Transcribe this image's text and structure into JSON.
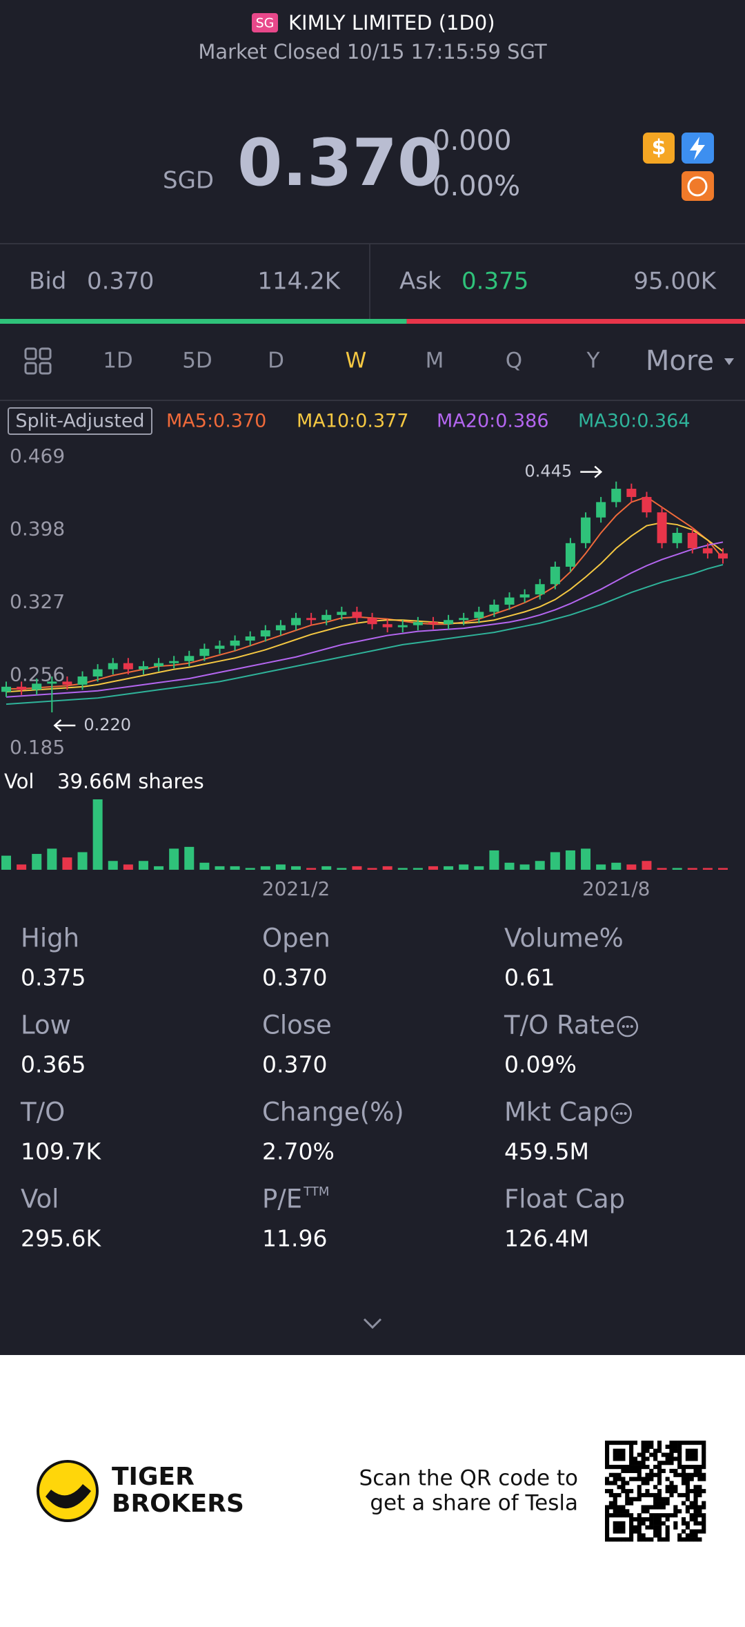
{
  "header": {
    "badge": "SG",
    "title": "KIMLY LIMITED (1D0)",
    "status": "Market Closed 10/15 17:15:59 SGT"
  },
  "quote": {
    "currency": "SGD",
    "price": "0.370",
    "change": "0.000",
    "change_pct": "0.00%"
  },
  "order_book": {
    "bid": {
      "label": "Bid",
      "price": "0.370",
      "size": {
        "value": 114200,
        "label": "114.2K"
      },
      "color": "#2fc27a"
    },
    "ask": {
      "label": "Ask",
      "price": "0.375",
      "size": {
        "value": 95000,
        "label": "95.00K"
      },
      "color": "#e8354a"
    }
  },
  "tabs": [
    {
      "label": "1D"
    },
    {
      "label": "5D"
    },
    {
      "label": "D"
    },
    {
      "label": "W",
      "active": true
    },
    {
      "label": "M"
    },
    {
      "label": "Q"
    },
    {
      "label": "Y"
    },
    {
      "label": "More",
      "menu": true
    }
  ],
  "chart_data": {
    "type": "candlestick",
    "badge": "Split-Adjusted",
    "categories": [
      null,
      null,
      null,
      null,
      null,
      null,
      null,
      null,
      null,
      null,
      null,
      null,
      null,
      null,
      null,
      null,
      null,
      null,
      null,
      "2021/2",
      null,
      null,
      null,
      null,
      null,
      null,
      null,
      null,
      null,
      null,
      null,
      null,
      null,
      null,
      null,
      null,
      null,
      null,
      null,
      null,
      "2021/8",
      null,
      null,
      null,
      null,
      null,
      null,
      null
    ],
    "open": [
      0.24,
      0.245,
      0.242,
      0.248,
      0.25,
      0.247,
      0.255,
      0.262,
      0.268,
      0.262,
      0.265,
      0.268,
      0.27,
      0.275,
      0.282,
      0.285,
      0.29,
      0.294,
      0.3,
      0.305,
      0.312,
      0.31,
      0.315,
      0.318,
      0.312,
      0.306,
      0.303,
      0.305,
      0.308,
      0.306,
      0.31,
      0.312,
      0.318,
      0.325,
      0.332,
      0.335,
      0.345,
      0.362,
      0.385,
      0.41,
      0.425,
      0.438,
      0.43,
      0.415,
      0.385,
      0.395,
      0.38,
      0.375
    ],
    "high": [
      0.25,
      0.25,
      0.253,
      0.255,
      0.255,
      0.26,
      0.267,
      0.273,
      0.273,
      0.27,
      0.273,
      0.275,
      0.28,
      0.287,
      0.29,
      0.295,
      0.299,
      0.305,
      0.31,
      0.317,
      0.317,
      0.32,
      0.323,
      0.323,
      0.317,
      0.311,
      0.31,
      0.313,
      0.313,
      0.315,
      0.317,
      0.323,
      0.33,
      0.337,
      0.34,
      0.35,
      0.367,
      0.39,
      0.415,
      0.43,
      0.445,
      0.443,
      0.435,
      0.42,
      0.4,
      0.4,
      0.385,
      0.38
    ],
    "low": [
      0.235,
      0.237,
      0.237,
      0.22,
      0.242,
      0.242,
      0.25,
      0.257,
      0.257,
      0.257,
      0.26,
      0.263,
      0.265,
      0.27,
      0.277,
      0.28,
      0.285,
      0.289,
      0.295,
      0.3,
      0.305,
      0.305,
      0.31,
      0.307,
      0.301,
      0.298,
      0.298,
      0.3,
      0.301,
      0.301,
      0.305,
      0.307,
      0.313,
      0.32,
      0.327,
      0.33,
      0.34,
      0.357,
      0.38,
      0.405,
      0.42,
      0.425,
      0.41,
      0.38,
      0.38,
      0.375,
      0.37,
      0.365
    ],
    "close": [
      0.245,
      0.242,
      0.248,
      0.25,
      0.247,
      0.255,
      0.262,
      0.268,
      0.262,
      0.265,
      0.268,
      0.27,
      0.275,
      0.282,
      0.285,
      0.29,
      0.294,
      0.3,
      0.305,
      0.312,
      0.31,
      0.315,
      0.318,
      0.312,
      0.306,
      0.303,
      0.305,
      0.308,
      0.306,
      0.31,
      0.312,
      0.318,
      0.325,
      0.332,
      0.335,
      0.345,
      0.362,
      0.385,
      0.41,
      0.425,
      0.438,
      0.43,
      0.415,
      0.385,
      0.395,
      0.38,
      0.375,
      0.37
    ],
    "up_color": "#2fc27a",
    "down_color": "#e8354a",
    "series": [
      {
        "name": "MA5:0.370",
        "color": "#f06a3a",
        "values": [
          0.243,
          0.243,
          0.244,
          0.245,
          0.246,
          0.248,
          0.252,
          0.256,
          0.259,
          0.262,
          0.265,
          0.266,
          0.268,
          0.272,
          0.276,
          0.28,
          0.285,
          0.29,
          0.295,
          0.3,
          0.305,
          0.308,
          0.312,
          0.313,
          0.312,
          0.311,
          0.309,
          0.307,
          0.306,
          0.306,
          0.308,
          0.311,
          0.316,
          0.321,
          0.327,
          0.334,
          0.343,
          0.357,
          0.375,
          0.395,
          0.412,
          0.425,
          0.43,
          0.42,
          0.41,
          0.4,
          0.388,
          0.37
        ]
      },
      {
        "name": "MA10:0.377",
        "color": "#f5c842",
        "values": [
          0.24,
          0.241,
          0.242,
          0.243,
          0.244,
          0.245,
          0.247,
          0.25,
          0.253,
          0.256,
          0.259,
          0.262,
          0.264,
          0.267,
          0.27,
          0.273,
          0.277,
          0.281,
          0.286,
          0.291,
          0.296,
          0.3,
          0.304,
          0.307,
          0.309,
          0.31,
          0.31,
          0.309,
          0.308,
          0.307,
          0.307,
          0.308,
          0.31,
          0.314,
          0.318,
          0.323,
          0.33,
          0.34,
          0.352,
          0.365,
          0.38,
          0.392,
          0.402,
          0.405,
          0.403,
          0.398,
          0.388,
          0.377
        ]
      },
      {
        "name": "MA20:0.386",
        "color": "#b466f0",
        "values": [
          0.235,
          0.236,
          0.237,
          0.238,
          0.239,
          0.24,
          0.241,
          0.243,
          0.245,
          0.247,
          0.249,
          0.251,
          0.253,
          0.256,
          0.259,
          0.262,
          0.265,
          0.268,
          0.271,
          0.274,
          0.278,
          0.282,
          0.286,
          0.289,
          0.292,
          0.295,
          0.297,
          0.299,
          0.3,
          0.301,
          0.302,
          0.304,
          0.306,
          0.308,
          0.311,
          0.315,
          0.32,
          0.326,
          0.333,
          0.34,
          0.348,
          0.356,
          0.363,
          0.369,
          0.374,
          0.379,
          0.383,
          0.386
        ]
      },
      {
        "name": "MA30:0.364",
        "color": "#2fb39a",
        "values": [
          0.228,
          0.229,
          0.23,
          0.231,
          0.232,
          0.233,
          0.234,
          0.236,
          0.238,
          0.24,
          0.242,
          0.244,
          0.246,
          0.248,
          0.25,
          0.253,
          0.256,
          0.259,
          0.262,
          0.265,
          0.268,
          0.271,
          0.274,
          0.277,
          0.28,
          0.283,
          0.286,
          0.288,
          0.29,
          0.292,
          0.294,
          0.296,
          0.298,
          0.301,
          0.304,
          0.307,
          0.311,
          0.315,
          0.32,
          0.325,
          0.331,
          0.337,
          0.342,
          0.347,
          0.351,
          0.355,
          0.36,
          0.364
        ]
      }
    ],
    "ylim": [
      0.185,
      0.469
    ],
    "yticks": [
      0.469,
      0.398,
      0.327,
      0.256,
      0.185
    ],
    "max_label": 0.445,
    "min_label": {
      "value": 0.22,
      "label": "0.220"
    },
    "volume": {
      "label": "Vol",
      "text": "39.66M shares",
      "ylim": [
        0,
        40
      ],
      "values": [
        8,
        3,
        9,
        12,
        7,
        10,
        40,
        5,
        3,
        5,
        2,
        12,
        13,
        4,
        2,
        2,
        1,
        2,
        3,
        2,
        1,
        2,
        1,
        2,
        1,
        2,
        1,
        1,
        2,
        2,
        3,
        2,
        11,
        4,
        3,
        5,
        10,
        11,
        12,
        3,
        4,
        3,
        5,
        1,
        1,
        1,
        1,
        1
      ]
    }
  },
  "stats": [
    {
      "label": "High",
      "value": "0.375"
    },
    {
      "label": "Open",
      "value": "0.370"
    },
    {
      "label": "Volume%",
      "value": "0.61"
    },
    {
      "label": "Low",
      "value": "0.365"
    },
    {
      "label": "Close",
      "value": "0.370"
    },
    {
      "label": "T/O Rate",
      "value": "0.09%",
      "info": true
    },
    {
      "label": "T/O",
      "value": "109.7K"
    },
    {
      "label": "Change(%)",
      "value": "2.70%"
    },
    {
      "label": "Mkt Cap",
      "value": "459.5M",
      "info": true
    },
    {
      "label": "Vol",
      "value": "295.6K"
    },
    {
      "label": "P/E",
      "sup": "TTM",
      "value": "11.96"
    },
    {
      "label": "Float Cap",
      "value": "126.4M"
    }
  ],
  "footer": {
    "brand": [
      "TIGER",
      "BROKERS"
    ],
    "promo": [
      "Scan the QR code to",
      "get a share of Tesla"
    ]
  }
}
